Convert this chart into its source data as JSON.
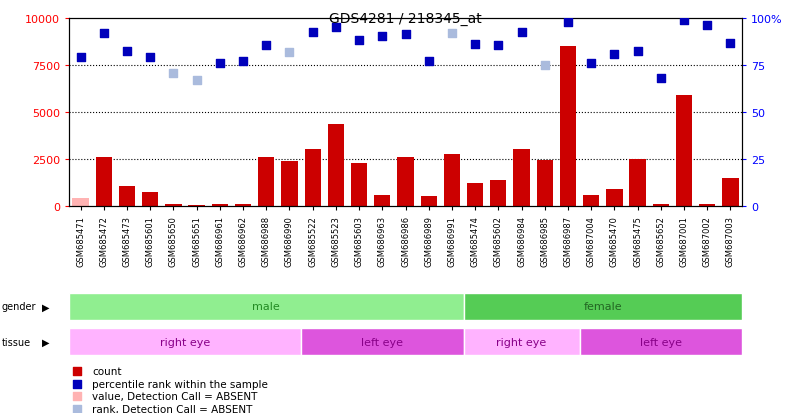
{
  "title": "GDS4281 / 218345_at",
  "samples": [
    "GSM685471",
    "GSM685472",
    "GSM685473",
    "GSM685601",
    "GSM685650",
    "GSM685651",
    "GSM686961",
    "GSM686962",
    "GSM686988",
    "GSM686990",
    "GSM685522",
    "GSM685523",
    "GSM685603",
    "GSM686963",
    "GSM686986",
    "GSM686989",
    "GSM686991",
    "GSM685474",
    "GSM685602",
    "GSM686984",
    "GSM686985",
    "GSM686987",
    "GSM687004",
    "GSM685470",
    "GSM685475",
    "GSM685652",
    "GSM687001",
    "GSM687002",
    "GSM687003"
  ],
  "count_values": [
    400,
    2600,
    1050,
    750,
    100,
    75,
    100,
    120,
    2600,
    2400,
    3050,
    4350,
    2300,
    600,
    2600,
    550,
    2750,
    1200,
    1400,
    3050,
    2450,
    8500,
    600,
    900,
    2500,
    100,
    5900,
    100,
    1500
  ],
  "count_absent": [
    true,
    false,
    false,
    false,
    false,
    false,
    false,
    false,
    false,
    false,
    false,
    false,
    false,
    false,
    false,
    false,
    false,
    false,
    false,
    false,
    false,
    false,
    false,
    false,
    false,
    false,
    false,
    false,
    false
  ],
  "rank_values": [
    7900,
    9200,
    8250,
    7900,
    7050,
    6700,
    7600,
    7700,
    8550,
    8200,
    9250,
    9500,
    8800,
    9000,
    9150,
    7700,
    9200,
    8600,
    8550,
    9250,
    7500,
    9750,
    7600,
    8050,
    8250,
    6800,
    9900,
    9600,
    8650
  ],
  "rank_absent": [
    false,
    false,
    false,
    false,
    true,
    true,
    false,
    false,
    false,
    true,
    false,
    false,
    false,
    false,
    false,
    false,
    true,
    false,
    false,
    false,
    true,
    false,
    false,
    false,
    false,
    false,
    false,
    false,
    false
  ],
  "gender_groups": [
    {
      "label": "male",
      "start": 0,
      "end": 17,
      "color": "#90EE90",
      "text_color": "#228B22"
    },
    {
      "label": "female",
      "start": 17,
      "end": 29,
      "color": "#55CC55",
      "text_color": "#226622"
    }
  ],
  "tissue_groups": [
    {
      "label": "right eye",
      "start": 0,
      "end": 10,
      "color": "#FFB3FF",
      "text_color": "#880088"
    },
    {
      "label": "left eye",
      "start": 10,
      "end": 17,
      "color": "#DD55DD",
      "text_color": "#880088"
    },
    {
      "label": "right eye",
      "start": 17,
      "end": 22,
      "color": "#FFB3FF",
      "text_color": "#880088"
    },
    {
      "label": "left eye",
      "start": 22,
      "end": 29,
      "color": "#DD55DD",
      "text_color": "#880088"
    }
  ],
  "ylim_left": [
    0,
    10000
  ],
  "ylim_right": [
    0,
    100
  ],
  "yticks_left": [
    0,
    2500,
    5000,
    7500,
    10000
  ],
  "yticks_right": [
    0,
    25,
    50,
    75,
    100
  ],
  "bar_color_present": "#CC0000",
  "bar_color_absent": "#FFB3B3",
  "rank_color_present": "#0000BB",
  "rank_color_absent": "#AABBDD",
  "grid_color": "black",
  "legend_items": [
    {
      "label": "count",
      "color": "#CC0000"
    },
    {
      "label": "percentile rank within the sample",
      "color": "#0000BB"
    },
    {
      "label": "value, Detection Call = ABSENT",
      "color": "#FFB3B3"
    },
    {
      "label": "rank, Detection Call = ABSENT",
      "color": "#AABBDD"
    }
  ]
}
